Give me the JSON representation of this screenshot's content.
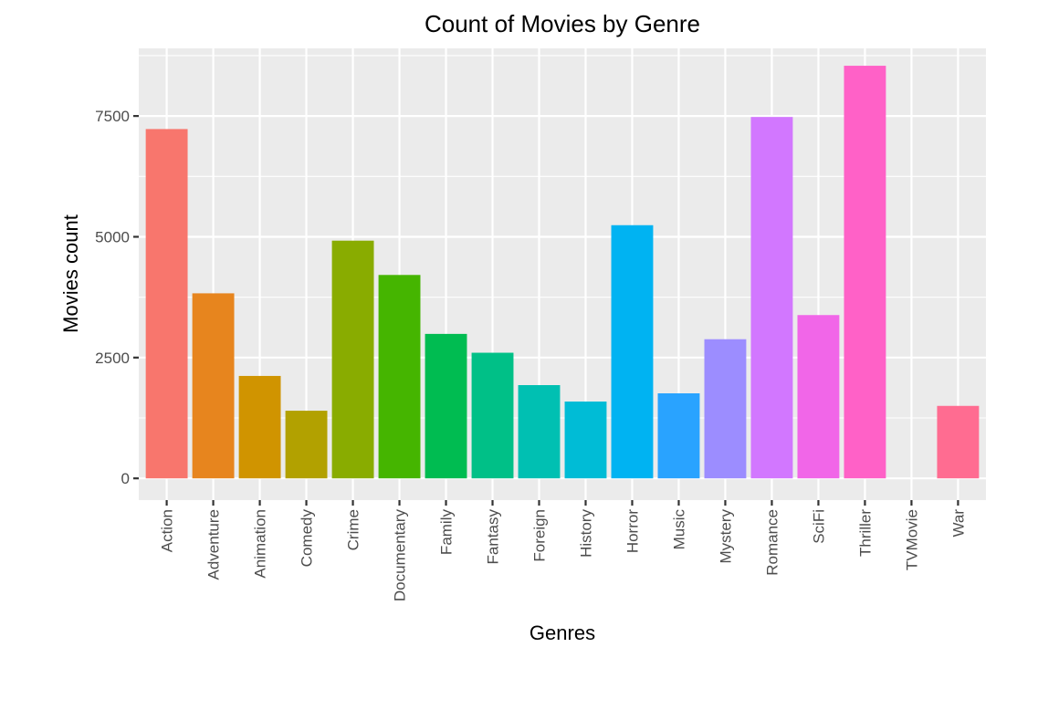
{
  "chart_data": {
    "type": "bar",
    "title": "Count of Movies by Genre",
    "xlabel": "Genres",
    "ylabel": "Movies count",
    "ylim": [
      -450,
      8900
    ],
    "yticks": [
      0,
      2500,
      5000,
      7500
    ],
    "ytick_labels": [
      "0",
      "2500",
      "5000",
      "7500"
    ],
    "grid": true,
    "legend": "none",
    "categories": [
      "Action",
      "Adventure",
      "Animation",
      "Comedy",
      "Crime",
      "Documentary",
      "Family",
      "Fantasy",
      "Foreign",
      "History",
      "Horror",
      "Music",
      "Mystery",
      "Romance",
      "SciFi",
      "Thriller",
      "TVMovie",
      "War"
    ],
    "values": [
      7230,
      3830,
      2120,
      1400,
      4920,
      4210,
      2990,
      2600,
      1930,
      1590,
      5240,
      1760,
      2880,
      7480,
      3380,
      8540,
      0,
      1500
    ],
    "colors": [
      "#F8766D",
      "#E7851E",
      "#D09400",
      "#B2A100",
      "#89AC00",
      "#45B500",
      "#00BC51",
      "#00C087",
      "#00C0B2",
      "#00BCD6",
      "#00B3F2",
      "#29A3FF",
      "#9C8DFF",
      "#D277FF",
      "#F166E8",
      "#FF61C7",
      "#FF689E",
      "#FF6C91"
    ]
  }
}
